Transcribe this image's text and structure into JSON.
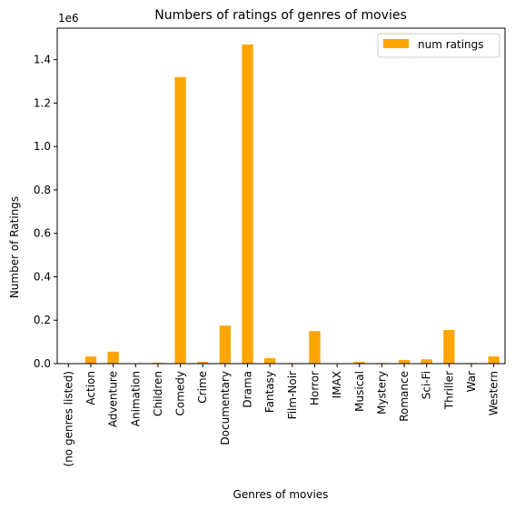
{
  "chart_data": {
    "type": "bar",
    "title": "Numbers of ratings of genres of movies",
    "xlabel": "Genres of movies",
    "ylabel": "Number of Ratings",
    "offset_text": "1e6",
    "categories": [
      "(no genres listed)",
      "Action",
      "Adventure",
      "Animation",
      "Children",
      "Comedy",
      "Crime",
      "Documentary",
      "Drama",
      "Fantasy",
      "Film-Noir",
      "Horror",
      "IMAX",
      "Musical",
      "Mystery",
      "Romance",
      "Sci-Fi",
      "Thriller",
      "War",
      "Western"
    ],
    "series": [
      {
        "name": "num ratings",
        "color": "#ffa500",
        "values": [
          500,
          33000,
          55000,
          2000,
          4000,
          1320000,
          8000,
          175000,
          1470000,
          25000,
          3000,
          150000,
          500,
          8000,
          3000,
          17000,
          20000,
          155000,
          3000,
          33000
        ]
      }
    ],
    "yticks": [
      0.0,
      0.2,
      0.4,
      0.6,
      0.8,
      1.0,
      1.2,
      1.4
    ],
    "ytick_labels": [
      "0.0",
      "0.2",
      "0.4",
      "0.6",
      "0.8",
      "1.0",
      "1.2",
      "1.4"
    ],
    "ylim": [
      0,
      1.545
    ],
    "legend_position": "top-right",
    "grid": false
  }
}
